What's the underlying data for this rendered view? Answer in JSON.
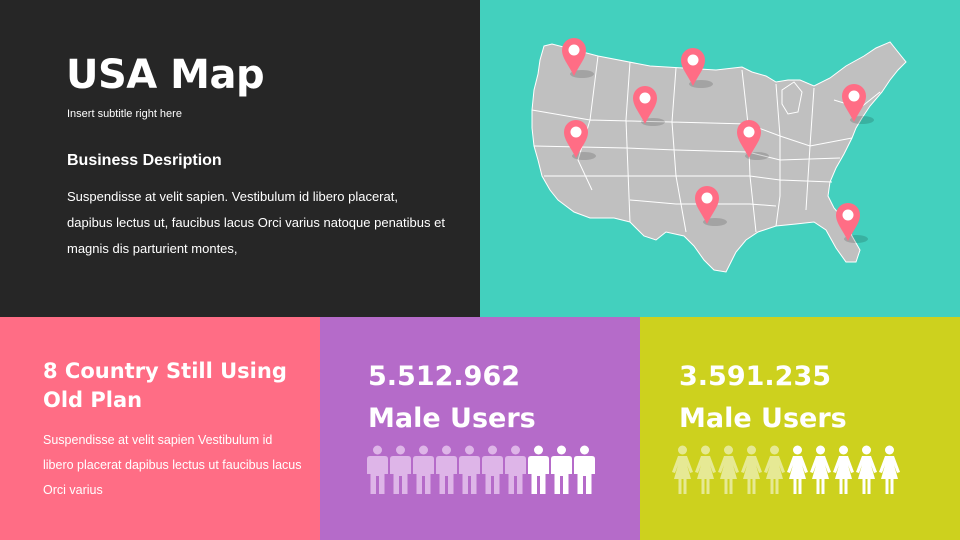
{
  "intro": {
    "title": "USA Map",
    "subtitle": "Insert subtitle right here",
    "desc_heading": "Business Desription",
    "desc_text": "Suspendisse at velit sapien. Vestibulum id libero placerat, dapibus lectus ut, faucibus lacus Orci varius natoque penatibus et magnis dis parturient montes,"
  },
  "map": {
    "pin_count": 8,
    "pin_color": "#FF6D85",
    "land_color": "#BFBFBF"
  },
  "plan": {
    "heading": "8 Country Still Using Old Plan",
    "text": "Suspendisse at velit sapien Vestibulum id libero placerat dapibus lectus ut faucibus lacus Orci varius"
  },
  "male_stat": {
    "number": "5.512.962",
    "label": "Male Users",
    "icon": "male-person-icon",
    "highlighted": 7,
    "total": 10
  },
  "female_stat": {
    "number": "3.591.235",
    "label": "Male Users",
    "icon": "female-person-icon",
    "highlighted": 5,
    "total": 10
  },
  "colors": {
    "dark": "#262626",
    "teal": "#43D0BE",
    "pink": "#FF6D85",
    "purple": "#B56BC9",
    "lime": "#CDD11E"
  }
}
